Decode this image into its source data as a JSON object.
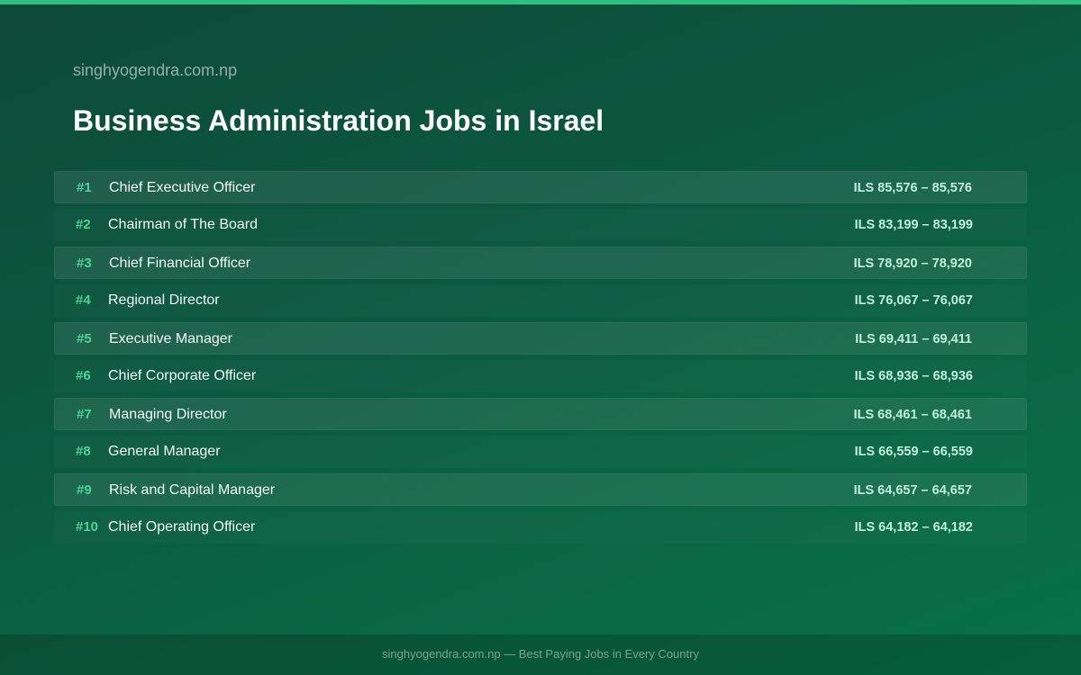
{
  "header": {
    "site": "singhyogendra.com.np",
    "title": "Business Administration Jobs in Israel"
  },
  "jobs": [
    {
      "rank": "#1",
      "title": "Chief Executive Officer",
      "salary": "ILS 85,576 – 85,576"
    },
    {
      "rank": "#2",
      "title": "Chairman of The Board",
      "salary": "ILS 83,199 – 83,199"
    },
    {
      "rank": "#3",
      "title": "Chief Financial Officer",
      "salary": "ILS 78,920 – 78,920"
    },
    {
      "rank": "#4",
      "title": "Regional Director",
      "salary": "ILS 76,067 – 76,067"
    },
    {
      "rank": "#5",
      "title": "Executive Manager",
      "salary": "ILS 69,411 – 69,411"
    },
    {
      "rank": "#6",
      "title": "Chief Corporate Officer",
      "salary": "ILS 68,936 – 68,936"
    },
    {
      "rank": "#7",
      "title": "Managing Director",
      "salary": "ILS 68,461 – 68,461"
    },
    {
      "rank": "#8",
      "title": "General Manager",
      "salary": "ILS 66,559 – 66,559"
    },
    {
      "rank": "#9",
      "title": "Risk and Capital Manager",
      "salary": "ILS 64,657 – 64,657"
    },
    {
      "rank": "#10",
      "title": "Chief Operating Officer",
      "salary": "ILS 64,182 – 64,182"
    }
  ],
  "footer": {
    "text": "singhyogendra.com.np — Best Paying Jobs in Every Country"
  },
  "colors": {
    "accent": "#2bc07f",
    "rank": "#4fd19a",
    "background_start": "#0d4a37",
    "background_end": "#08724b"
  }
}
